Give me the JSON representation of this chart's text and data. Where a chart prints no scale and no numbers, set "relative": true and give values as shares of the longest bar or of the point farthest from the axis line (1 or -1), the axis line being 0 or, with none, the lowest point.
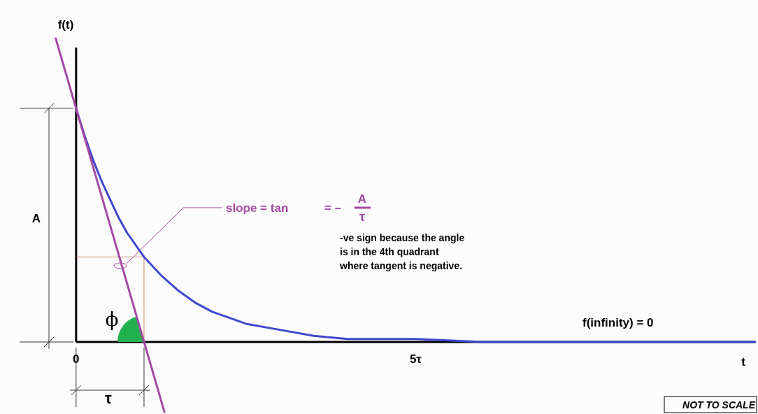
{
  "chart_data": {
    "type": "line",
    "relative": true,
    "xlabel": "t",
    "ylabel": "f(t)",
    "xlim": [
      -0.4,
      10
    ],
    "xticks": [
      0,
      {
        "value": 5,
        "label": "5τ"
      }
    ],
    "series": [
      {
        "color": "#3f48cc",
        "x": [
          0,
          0.125,
          0.25,
          0.375,
          0.5,
          0.625,
          0.75,
          0.875,
          1,
          1.25,
          1.5,
          1.75,
          2,
          2.5,
          3,
          3.5,
          4,
          5,
          6,
          8,
          10
        ],
        "values": [
          0.77,
          0.68,
          0.6,
          0.53,
          0.47,
          0.41,
          0.36,
          0.32,
          0.28,
          0.22,
          0.17,
          0.13,
          0.1,
          0.06,
          0.04,
          0.02,
          0.01,
          0.01,
          0,
          0,
          0
        ]
      },
      {
        "color": "#a349a4",
        "x": [
          -0.3,
          1.3
        ],
        "values": [
          1,
          -0.23
        ]
      }
    ],
    "annotations": [
      "slope = tan",
      "= –",
      "A",
      "τ",
      "-ve sign because the angle\nis in the 4th quadrant\nwhere tangent is negative.",
      "f(infinity) = 0",
      "NOT TO SCALE",
      "A",
      "τ",
      "ϕ"
    ]
  }
}
